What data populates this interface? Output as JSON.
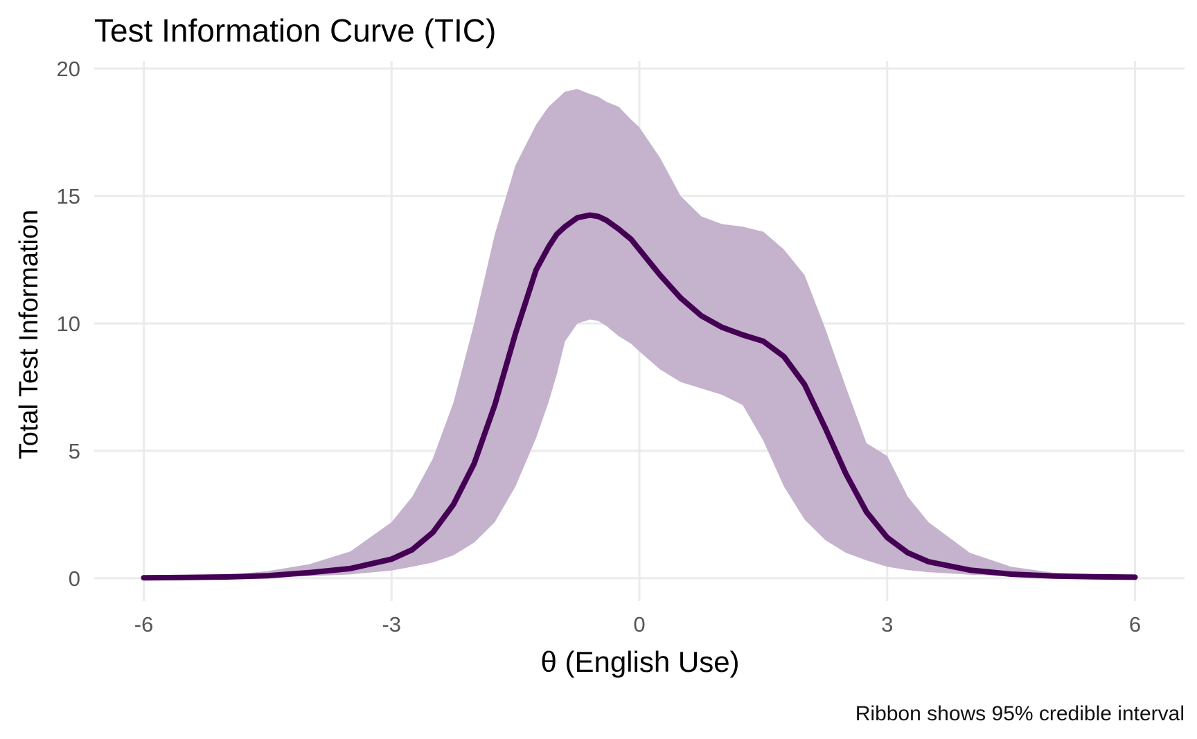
{
  "chart_data": {
    "type": "line",
    "title": "Test Information Curve (TIC)",
    "xlabel": "θ (English Use)",
    "ylabel": "Total Test Information",
    "caption": "Ribbon shows 95% credible interval",
    "xlim": [
      -6.6,
      6.6
    ],
    "ylim": [
      -0.9,
      20.3
    ],
    "x_ticks": [
      -6,
      -3,
      0,
      3,
      6
    ],
    "y_ticks": [
      0,
      5,
      10,
      15,
      20
    ],
    "x_tick_labels": [
      "-6",
      "-3",
      "0",
      "3",
      "6"
    ],
    "y_tick_labels": [
      "0",
      "5",
      "10",
      "15",
      "20"
    ],
    "grid": true,
    "legend": "none",
    "colors": {
      "line": "#440154",
      "ribbon": "#c5b2cd",
      "grid": "#ebebeb"
    },
    "series": [
      {
        "x": [
          -6,
          -5.5,
          -5,
          -4.5,
          -4,
          -3.5,
          -3,
          -2.75,
          -2.5,
          -2.25,
          -2,
          -1.75,
          -1.5,
          -1.25,
          -1.1,
          -1,
          -0.9,
          -0.75,
          -0.6,
          -0.5,
          -0.4,
          -0.25,
          -0.1,
          0,
          0.25,
          0.5,
          0.75,
          1,
          1.25,
          1.5,
          1.75,
          2,
          2.25,
          2.5,
          2.75,
          3,
          3.25,
          3.5,
          4,
          4.5,
          5,
          5.5,
          6
        ],
        "values": [
          0.02,
          0.03,
          0.05,
          0.1,
          0.22,
          0.38,
          0.75,
          1.12,
          1.8,
          2.9,
          4.5,
          6.8,
          9.6,
          12.1,
          13.0,
          13.5,
          13.8,
          14.15,
          14.25,
          14.2,
          14.05,
          13.7,
          13.3,
          12.9,
          11.9,
          11.0,
          10.3,
          9.85,
          9.55,
          9.3,
          8.7,
          7.6,
          5.9,
          4.1,
          2.6,
          1.6,
          1.0,
          0.65,
          0.32,
          0.16,
          0.09,
          0.06,
          0.04
        ],
        "lower": [
          0.01,
          0.01,
          0.02,
          0.04,
          0.08,
          0.15,
          0.3,
          0.45,
          0.62,
          0.9,
          1.4,
          2.2,
          3.6,
          5.5,
          6.9,
          8.0,
          9.3,
          10.0,
          10.15,
          10.1,
          9.9,
          9.5,
          9.2,
          8.9,
          8.2,
          7.7,
          7.45,
          7.2,
          6.8,
          5.4,
          3.6,
          2.3,
          1.5,
          1.0,
          0.7,
          0.45,
          0.32,
          0.24,
          0.14,
          0.08,
          0.05,
          0.03,
          0.02
        ],
        "upper": [
          0.03,
          0.06,
          0.12,
          0.28,
          0.55,
          1.05,
          2.2,
          3.2,
          4.7,
          6.9,
          10.0,
          13.5,
          16.2,
          17.8,
          18.5,
          18.8,
          19.1,
          19.2,
          19.0,
          18.9,
          18.7,
          18.5,
          18.0,
          17.7,
          16.5,
          15.0,
          14.2,
          13.9,
          13.8,
          13.6,
          12.9,
          11.9,
          9.8,
          7.5,
          5.3,
          4.8,
          3.2,
          2.2,
          1.0,
          0.45,
          0.22,
          0.12,
          0.07
        ]
      }
    ]
  }
}
